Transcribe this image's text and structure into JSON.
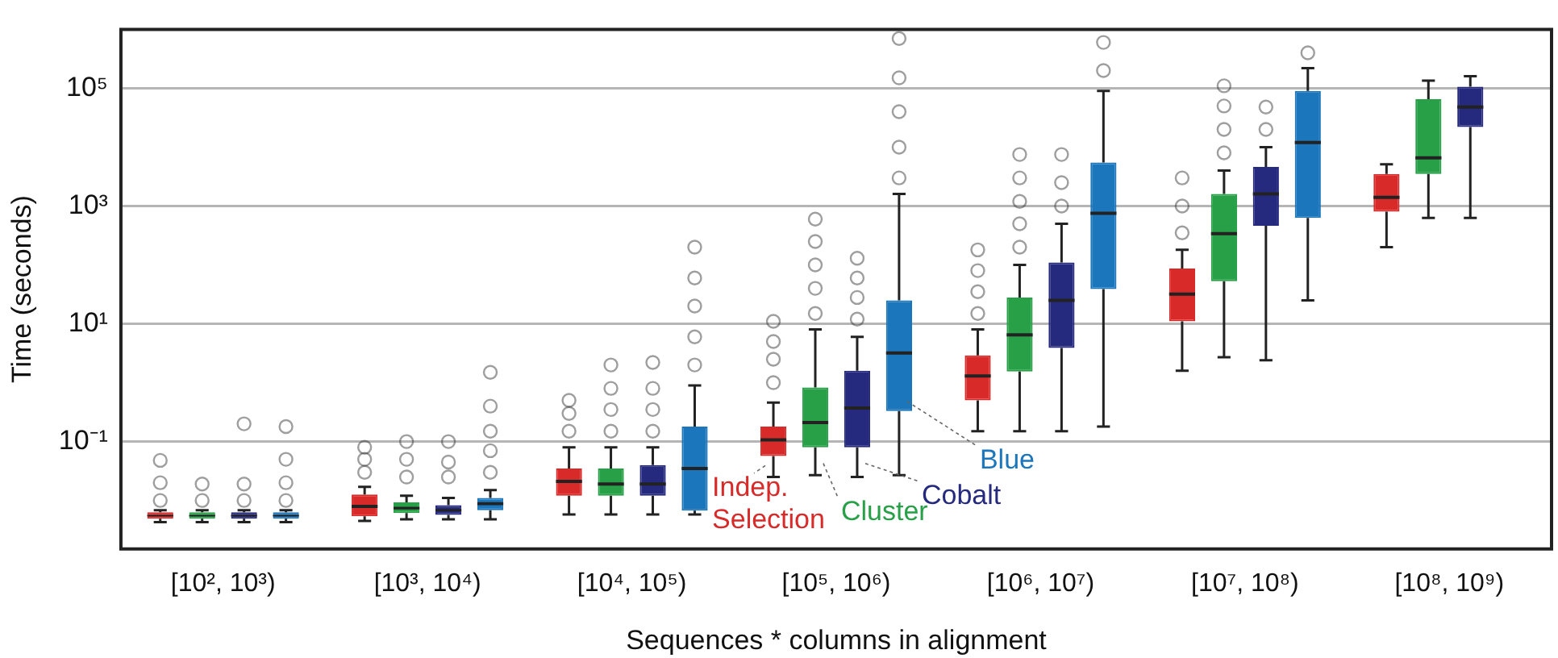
{
  "chart_data": {
    "type": "box",
    "xlabel": "Sequences * columns in alignment",
    "ylabel": "Time (seconds)",
    "categories": [
      "[10², 10³)",
      "[10³, 10⁴)",
      "[10⁴, 10⁵)",
      "[10⁵, 10⁶)",
      "[10⁶, 10⁷)",
      "[10⁷, 10⁸)",
      "[10⁸, 10⁹)"
    ],
    "ylim": [
      0.0015,
      1000000
    ],
    "yticks": [
      {
        "value": 0.1,
        "label": "10⁻¹"
      },
      {
        "value": 10,
        "label": "10¹"
      },
      {
        "value": 1000,
        "label": "10³"
      },
      {
        "value": 100000,
        "label": "10⁵"
      }
    ],
    "log": true,
    "grid": "y",
    "series": [
      {
        "name": "Indep. Selection",
        "color": "#d92a2a",
        "boxes": [
          {
            "low": 0.0043,
            "q1": 0.0049,
            "median": 0.0055,
            "q3": 0.0063,
            "high": 0.0068,
            "outliers": [
              0.01,
              0.02,
              0.048
            ]
          },
          {
            "low": 0.0045,
            "q1": 0.0054,
            "median": 0.0079,
            "q3": 0.0126,
            "high": 0.017,
            "outliers": [
              0.03,
              0.05,
              0.08
            ]
          },
          {
            "low": 0.0058,
            "q1": 0.012,
            "median": 0.021,
            "q3": 0.035,
            "high": 0.08,
            "outliers": [
              0.15,
              0.3,
              0.5
            ]
          },
          {
            "low": 0.025,
            "q1": 0.057,
            "median": 0.107,
            "q3": 0.18,
            "high": 0.46,
            "outliers": [
              1,
              2.5,
              5,
              11
            ]
          },
          {
            "low": 0.15,
            "q1": 0.5,
            "median": 1.3,
            "q3": 2.9,
            "high": 8,
            "outliers": [
              15,
              35,
              80,
              180
            ]
          },
          {
            "low": 1.6,
            "q1": 11,
            "median": 32,
            "q3": 87,
            "high": 180,
            "outliers": [
              350,
              1000,
              3000
            ]
          },
          {
            "low": 200,
            "q1": 800,
            "median": 1400,
            "q3": 3500,
            "high": 5100
          }
        ]
      },
      {
        "name": "Cluster",
        "color": "#27a048",
        "boxes": [
          {
            "low": 0.0043,
            "q1": 0.0049,
            "median": 0.0055,
            "q3": 0.0063,
            "high": 0.0068,
            "outliers": [
              0.01,
              0.019
            ]
          },
          {
            "low": 0.0048,
            "q1": 0.0061,
            "median": 0.0074,
            "q3": 0.0093,
            "high": 0.012,
            "outliers": [
              0.025,
              0.05,
              0.1
            ]
          },
          {
            "low": 0.0058,
            "q1": 0.012,
            "median": 0.019,
            "q3": 0.035,
            "high": 0.08,
            "outliers": [
              0.15,
              0.35,
              0.8,
              2
            ]
          },
          {
            "low": 0.027,
            "q1": 0.08,
            "median": 0.21,
            "q3": 0.83,
            "high": 8,
            "outliers": [
              15,
              40,
              100,
              250,
              600
            ]
          },
          {
            "low": 0.15,
            "q1": 1.55,
            "median": 6.5,
            "q3": 28,
            "high": 100,
            "outliers": [
              200,
              500,
              1200,
              3000,
              7500
            ]
          },
          {
            "low": 2.7,
            "q1": 53,
            "median": 340,
            "q3": 1600,
            "high": 4000,
            "outliers": [
              8000,
              20000,
              50000,
              110000
            ]
          },
          {
            "low": 630,
            "q1": 3500,
            "median": 6600,
            "q3": 65000,
            "high": 135000
          }
        ]
      },
      {
        "name": "Cobalt",
        "color": "#262a7e",
        "boxes": [
          {
            "low": 0.0043,
            "q1": 0.0049,
            "median": 0.0055,
            "q3": 0.0063,
            "high": 0.0068,
            "outliers": [
              0.01,
              0.019,
              0.2
            ]
          },
          {
            "low": 0.0048,
            "q1": 0.0057,
            "median": 0.0068,
            "q3": 0.0083,
            "high": 0.011,
            "outliers": [
              0.025,
              0.045,
              0.1
            ]
          },
          {
            "low": 0.0058,
            "q1": 0.012,
            "median": 0.019,
            "q3": 0.04,
            "high": 0.08,
            "outliers": [
              0.15,
              0.35,
              0.8,
              2.2
            ]
          },
          {
            "low": 0.025,
            "q1": 0.08,
            "median": 0.37,
            "q3": 1.6,
            "high": 6,
            "outliers": [
              12,
              28,
              60,
              130
            ]
          },
          {
            "low": 0.15,
            "q1": 3.9,
            "median": 25,
            "q3": 110,
            "high": 500,
            "outliers": [
              1000,
              2500,
              7500
            ]
          },
          {
            "low": 2.4,
            "q1": 460,
            "median": 1600,
            "q3": 4600,
            "high": 10000,
            "outliers": [
              20000,
              48000
            ]
          },
          {
            "low": 630,
            "q1": 22000,
            "median": 48000,
            "q3": 106000,
            "high": 160000
          }
        ]
      },
      {
        "name": "Blue",
        "color": "#1b76bb",
        "boxes": [
          {
            "low": 0.0043,
            "q1": 0.0049,
            "median": 0.0055,
            "q3": 0.0063,
            "high": 0.0068,
            "outliers": [
              0.01,
              0.02,
              0.05,
              0.18
            ]
          },
          {
            "low": 0.0048,
            "q1": 0.0068,
            "median": 0.0088,
            "q3": 0.011,
            "high": 0.015,
            "outliers": [
              0.03,
              0.07,
              0.15,
              0.4,
              1.5
            ]
          },
          {
            "low": 0.0058,
            "q1": 0.0067,
            "median": 0.035,
            "q3": 0.18,
            "high": 0.9,
            "outliers": [
              2,
              6,
              20,
              60,
              200
            ]
          },
          {
            "low": 0.027,
            "q1": 0.33,
            "median": 3.2,
            "q3": 25,
            "high": 1600,
            "outliers": [
              3000,
              10000,
              40000,
              150000,
              700000
            ]
          },
          {
            "low": 0.18,
            "q1": 39,
            "median": 750,
            "q3": 5500,
            "high": 90000,
            "outliers": [
              200000,
              600000
            ]
          },
          {
            "low": 25,
            "q1": 630,
            "median": 12000,
            "q3": 90000,
            "high": 220000,
            "outliers": [
              400000
            ]
          },
          null
        ]
      }
    ]
  }
}
